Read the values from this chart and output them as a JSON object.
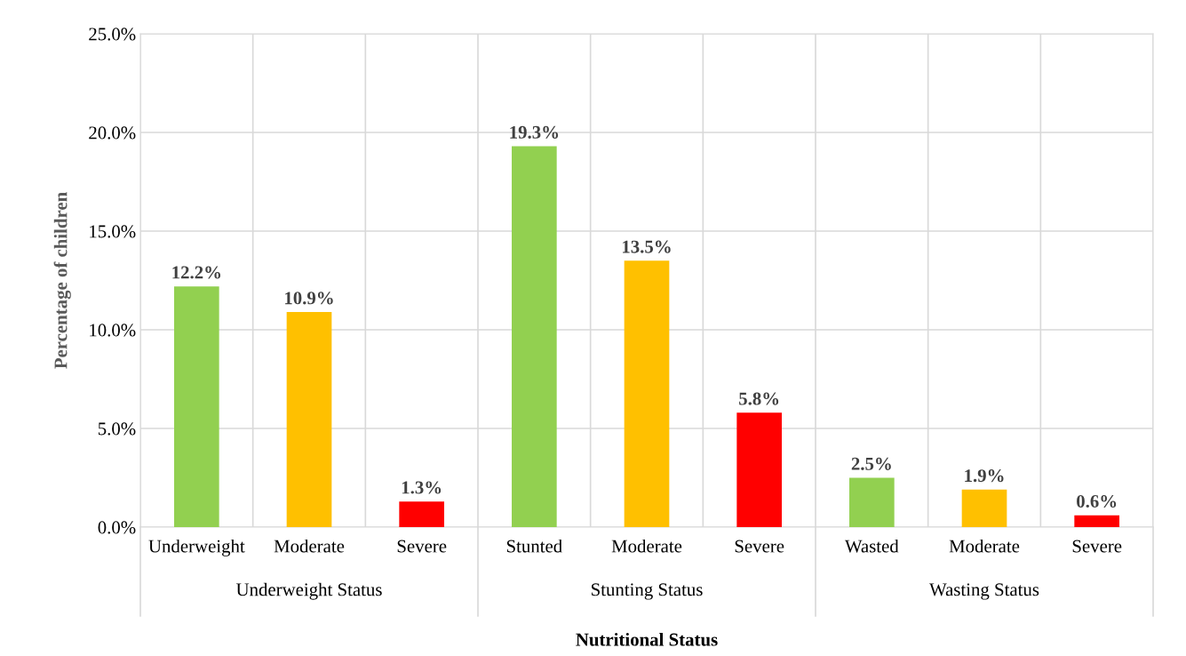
{
  "chart_data": {
    "type": "bar",
    "xlabel": "Nutritional Status",
    "ylabel": "Percentage of children",
    "categories": [
      "Underweight",
      "Moderate",
      "Severe",
      "Stunted",
      "Moderate",
      "Severe",
      "Wasted",
      "Moderate",
      "Severe"
    ],
    "values": [
      12.2,
      10.9,
      1.3,
      19.3,
      13.5,
      5.8,
      2.5,
      1.9,
      0.6
    ],
    "colors": [
      "#92d050",
      "#ffc000",
      "#ff0000",
      "#92d050",
      "#ffc000",
      "#ff0000",
      "#92d050",
      "#ffc000",
      "#ff0000"
    ],
    "value_labels": [
      "12.2%",
      "10.9%",
      "1.3%",
      "19.3%",
      "13.5%",
      "5.8%",
      "2.5%",
      "1.9%",
      "0.6%"
    ],
    "annotations": [
      "Underweight Status",
      "Stunting Status",
      "Wasting Status"
    ],
    "ylim": [
      0,
      25
    ],
    "yticks": [
      {
        "value": 0,
        "label": "0.0%"
      },
      {
        "value": 5,
        "label": "5.0%"
      },
      {
        "value": 10,
        "label": "10.0%"
      },
      {
        "value": 15,
        "label": "15.0%"
      },
      {
        "value": 20,
        "label": "20.0%"
      },
      {
        "value": 25,
        "label": "25.0%"
      }
    ],
    "grid": true
  }
}
